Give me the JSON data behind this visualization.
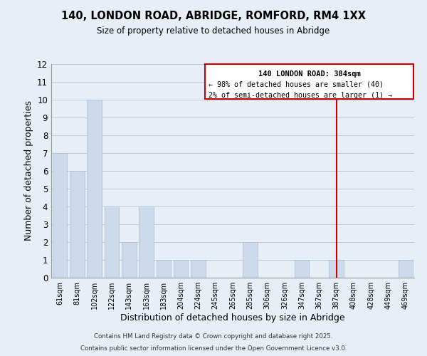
{
  "title": "140, LONDON ROAD, ABRIDGE, ROMFORD, RM4 1XX",
  "subtitle": "Size of property relative to detached houses in Abridge",
  "xlabel": "Distribution of detached houses by size in Abridge",
  "ylabel": "Number of detached properties",
  "bar_labels": [
    "61sqm",
    "81sqm",
    "102sqm",
    "122sqm",
    "143sqm",
    "163sqm",
    "183sqm",
    "204sqm",
    "224sqm",
    "245sqm",
    "265sqm",
    "285sqm",
    "306sqm",
    "326sqm",
    "347sqm",
    "367sqm",
    "387sqm",
    "408sqm",
    "428sqm",
    "449sqm",
    "469sqm"
  ],
  "bar_values": [
    7,
    6,
    10,
    4,
    2,
    4,
    1,
    1,
    1,
    0,
    0,
    2,
    0,
    0,
    1,
    0,
    1,
    0,
    0,
    0,
    1
  ],
  "bar_color": "#ccdaeb",
  "bar_edge_color": "#a8bfd4",
  "grid_color": "#b8c8d8",
  "background_color": "#e8eef5",
  "vline_x_index": 16,
  "vline_color": "#cc0000",
  "annotation_title": "140 LONDON ROAD: 384sqm",
  "annotation_line1": "← 98% of detached houses are smaller (40)",
  "annotation_line2": "2% of semi-detached houses are larger (1) →",
  "annotation_box_color": "#cc0000",
  "ylim": [
    0,
    12
  ],
  "yticks": [
    0,
    1,
    2,
    3,
    4,
    5,
    6,
    7,
    8,
    9,
    10,
    11,
    12
  ],
  "footer1": "Contains HM Land Registry data © Crown copyright and database right 2025.",
  "footer2": "Contains public sector information licensed under the Open Government Licence v3.0."
}
